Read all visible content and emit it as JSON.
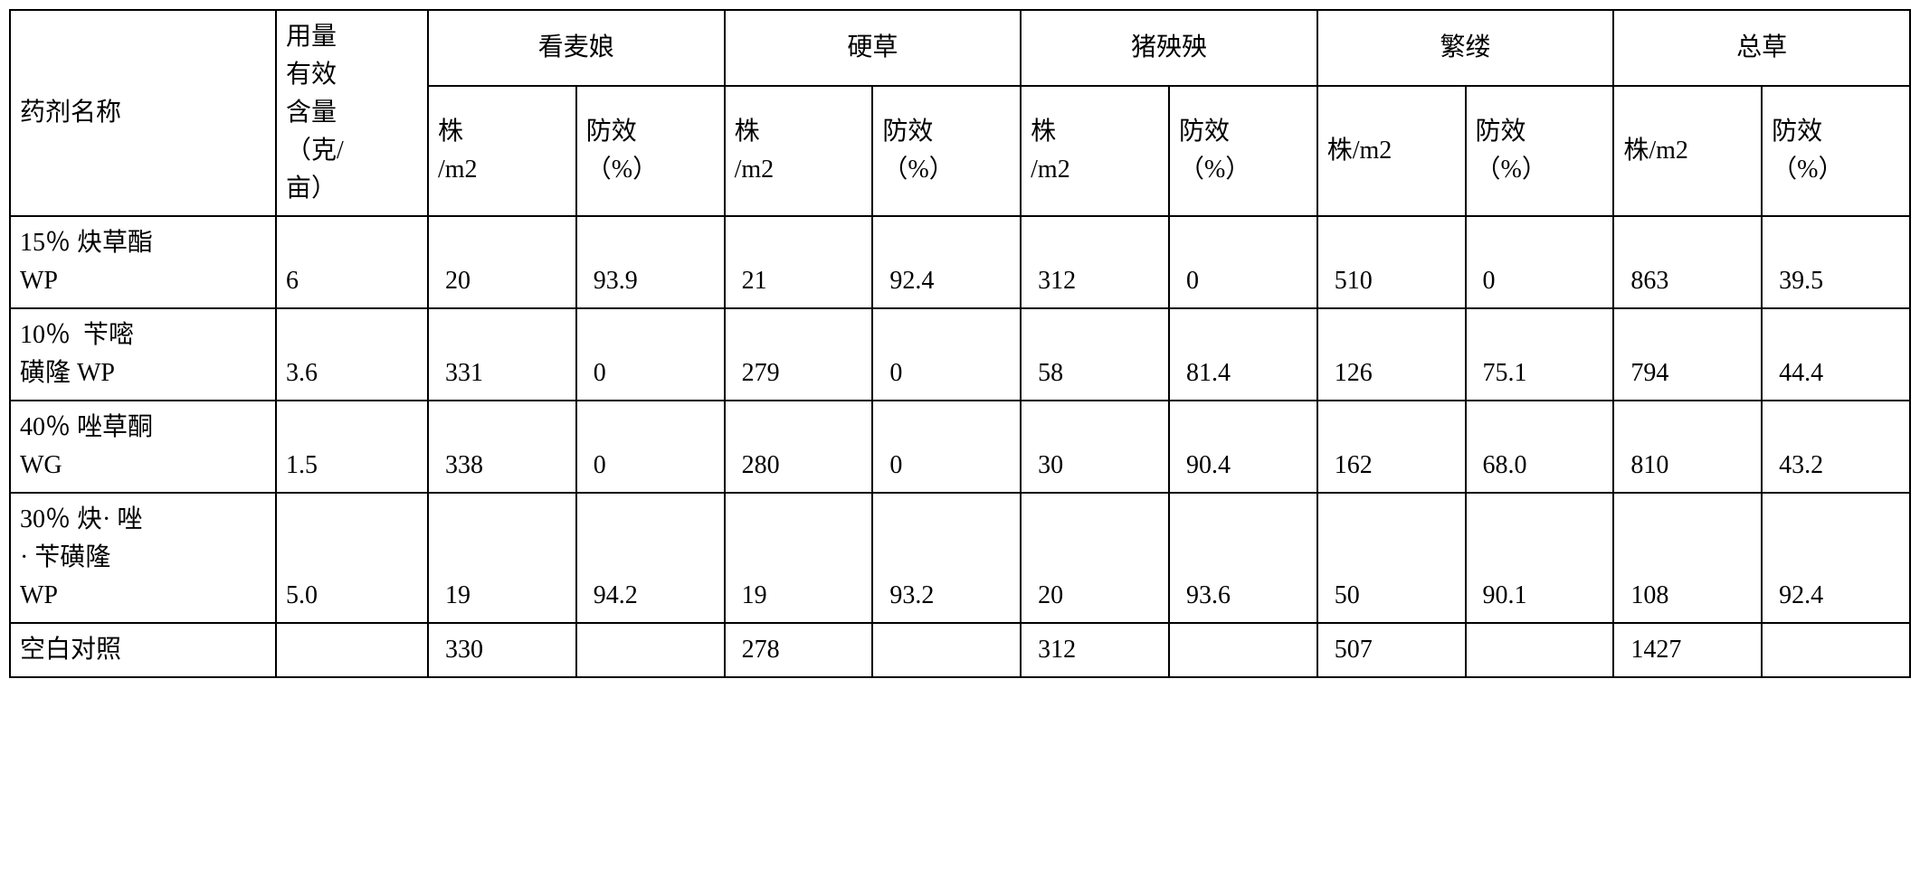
{
  "table": {
    "headers": {
      "name": "药剂名称",
      "dose": "用量\n有效\n含量\n（克/\n亩）",
      "groups": [
        "看麦娘",
        "硬草",
        "猪殃殃",
        "繁缕",
        "总草"
      ],
      "subheaders": {
        "plants_m2": "株\n/m2",
        "plants_m2_alt": "株/m2",
        "efficacy": "防效\n（%）"
      }
    },
    "rows": [
      {
        "name": "15％ 炔草酯\nWP",
        "dose": "6",
        "data": [
          "20",
          "93.9",
          "21",
          "92.4",
          "312",
          "0",
          "510",
          "0",
          "863",
          "39.5"
        ]
      },
      {
        "name": "10％  苄嘧\n磺隆 WP",
        "dose": "3.6",
        "data": [
          "331",
          "0",
          "279",
          "0",
          "58",
          "81.4",
          "126",
          "75.1",
          "794",
          "44.4"
        ]
      },
      {
        "name": "40％ 唑草酮\nWG",
        "dose": "1.5",
        "data": [
          "338",
          "0",
          "280",
          "0",
          "30",
          "90.4",
          "162",
          "68.0",
          "810",
          "43.2"
        ]
      },
      {
        "name": "30％ 炔· 唑\n· 苄磺隆\nWP",
        "dose": "5.0",
        "data": [
          "19",
          "94.2",
          "19",
          "93.2",
          "20",
          "93.6",
          "50",
          "90.1",
          "108",
          "92.4"
        ]
      },
      {
        "name": "空白对照",
        "dose": "",
        "data": [
          "330",
          "",
          "278",
          "",
          "312",
          "",
          "507",
          "",
          "1427",
          ""
        ]
      }
    ]
  },
  "styling": {
    "font_family": "SimSun",
    "font_size": 28,
    "border_color": "#000000",
    "border_width": 2,
    "background_color": "#ffffff",
    "text_color": "#000000",
    "cell_padding": "8px 10px"
  }
}
